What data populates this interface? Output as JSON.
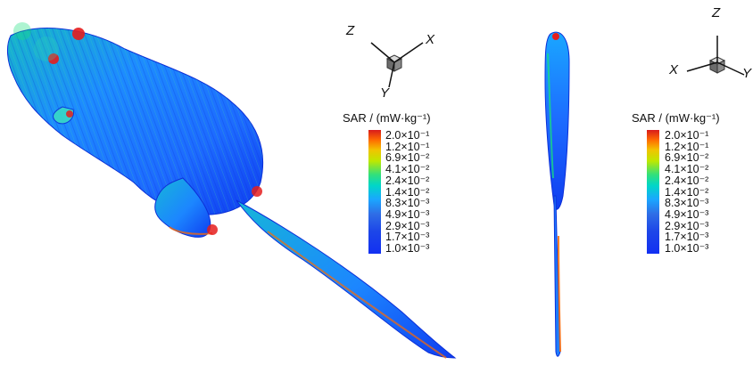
{
  "figure": {
    "left_panel": {
      "axes": {
        "z": "Z",
        "x": "X",
        "y": "Y"
      },
      "legend_title": "SAR / (mW·kg⁻¹)",
      "ticks": [
        "2.0×10⁻¹",
        "1.2×10⁻¹",
        "6.9×10⁻²",
        "4.1×10⁻²",
        "2.4×10⁻²",
        "1.4×10⁻²",
        "8.3×10⁻³",
        "4.9×10⁻³",
        "2.9×10⁻³",
        "1.7×10⁻³",
        "1.0×10⁻³"
      ]
    },
    "right_panel": {
      "axes": {
        "z": "Z",
        "x": "X",
        "y": "Y"
      },
      "legend_title": "SAR / (mW·kg⁻¹)",
      "ticks": [
        "2.0×10⁻¹",
        "1.2×10⁻¹",
        "6.9×10⁻²",
        "4.1×10⁻²",
        "2.4×10⁻²",
        "1.4×10⁻²",
        "8.3×10⁻³",
        "4.9×10⁻³",
        "2.9×10⁻³",
        "1.7×10⁻³",
        "1.0×10⁻³"
      ]
    },
    "colormap": [
      "#d81b1b",
      "#ff6a00",
      "#f2c300",
      "#bfe800",
      "#33e07a",
      "#00d6c8",
      "#1aa7ff",
      "#2f6de6",
      "#1d46e8",
      "#1538ee",
      "#1230f2"
    ]
  }
}
